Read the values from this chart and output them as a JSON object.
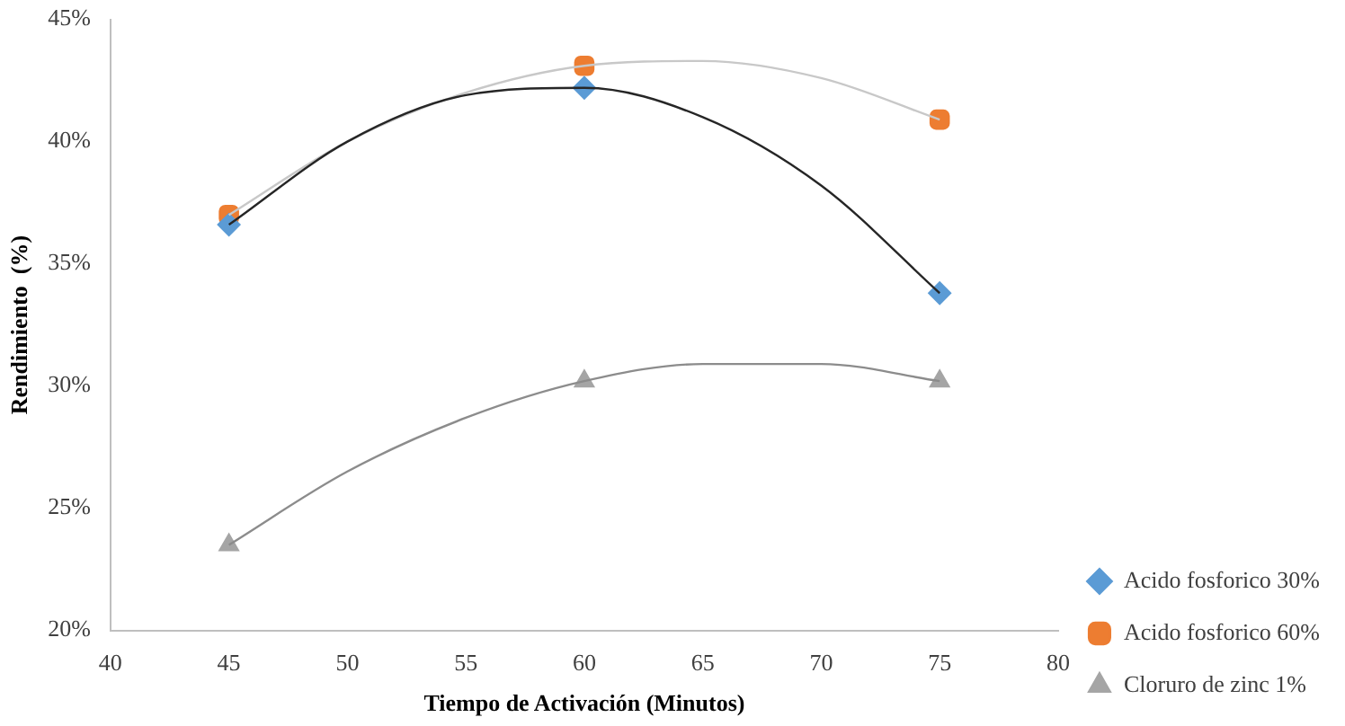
{
  "chart_data": {
    "type": "scatter",
    "xlabel": "Tiempo de Activación (Minutos)",
    "ylabel": "Rendimiento  (%)",
    "xlim": [
      40,
      80
    ],
    "xticks": [
      40,
      45,
      50,
      55,
      60,
      65,
      70,
      75,
      80
    ],
    "ylim": [
      20,
      45
    ],
    "yticks": [
      {
        "value": 20,
        "label": "20%"
      },
      {
        "value": 25,
        "label": "25%"
      },
      {
        "value": 30,
        "label": "30%"
      },
      {
        "value": 35,
        "label": "35%"
      },
      {
        "value": 40,
        "label": "40%"
      },
      {
        "value": 45,
        "label": "45%"
      }
    ],
    "grid": false,
    "legend": "right",
    "series": [
      {
        "type": "line",
        "color": "#262626",
        "marker": "none",
        "x": [
          45,
          50,
          55,
          60,
          65,
          70,
          75
        ],
        "values": [
          36.6,
          40.0,
          41.9,
          42.2,
          41.0,
          38.2,
          33.8
        ]
      },
      {
        "type": "line",
        "color": "#c8c8c8",
        "marker": "none",
        "x": [
          45,
          50,
          55,
          60,
          65,
          70,
          75
        ],
        "values": [
          37.0,
          40.0,
          42.0,
          43.1,
          43.3,
          42.6,
          40.9
        ]
      },
      {
        "type": "line",
        "color": "#8c8c8c",
        "marker": "none",
        "x": [
          45,
          50,
          55,
          60,
          65,
          70,
          75
        ],
        "values": [
          23.5,
          26.5,
          28.7,
          30.2,
          30.9,
          30.9,
          30.2
        ]
      },
      {
        "name": "Acido fosforico 30%",
        "color": "#5b9bd5",
        "marker": "diamond",
        "x": [
          45,
          60,
          75
        ],
        "values": [
          36.6,
          42.2,
          33.8
        ]
      },
      {
        "name": "Acido fosforico 60%",
        "color": "#ed7d31",
        "marker": "square",
        "x": [
          45,
          60,
          75
        ],
        "values": [
          37.0,
          43.1,
          40.9
        ]
      },
      {
        "name": "Cloruro de zinc 1%",
        "color": "#a5a5a5",
        "marker": "triangle",
        "x": [
          45,
          60,
          75
        ],
        "values": [
          23.5,
          30.2,
          30.2
        ]
      }
    ]
  }
}
